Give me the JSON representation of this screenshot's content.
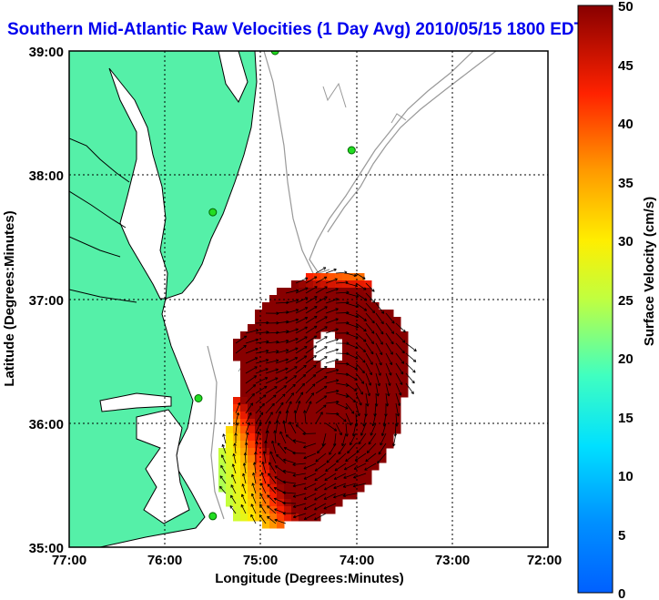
{
  "title": "Southern Mid-Atlantic Raw Velocities (1 Day Avg) 2010/05/15 1800 EDT",
  "xlabel": "Longitude (Degrees:Minutes)",
  "ylabel": "Latitude (Degrees:Minutes)",
  "colorbar_label": "Surface Velocity (cm/s)",
  "x_ticks": [
    "77:00",
    "76:00",
    "75:00",
    "74:00",
    "73:00",
    "72:00"
  ],
  "y_ticks": [
    "39:00",
    "38:00",
    "37:00",
    "36:00",
    "35:00"
  ],
  "colorbar_ticks": [
    "50",
    "45",
    "40",
    "35",
    "30",
    "25",
    "20",
    "15",
    "10",
    "5",
    "0"
  ],
  "colors": {
    "land": "#55f0a8",
    "coastline": "#000000",
    "bathymetry": "#999999",
    "grid": "#000000",
    "station": "#22dd22",
    "title": "#0000ee"
  },
  "chart_data": {
    "type": "heatmap",
    "xlim": [
      -77,
      -72
    ],
    "ylim": [
      35,
      39
    ],
    "clim": [
      0,
      50
    ],
    "colormap": "jet",
    "grid": true,
    "stations": [
      {
        "lon": -74.85,
        "lat": 39.0
      },
      {
        "lon": -74.05,
        "lat": 38.2
      },
      {
        "lon": -75.5,
        "lat": 37.7
      },
      {
        "lon": -75.65,
        "lat": 36.2
      },
      {
        "lon": -75.5,
        "lat": 35.25
      }
    ]
  }
}
